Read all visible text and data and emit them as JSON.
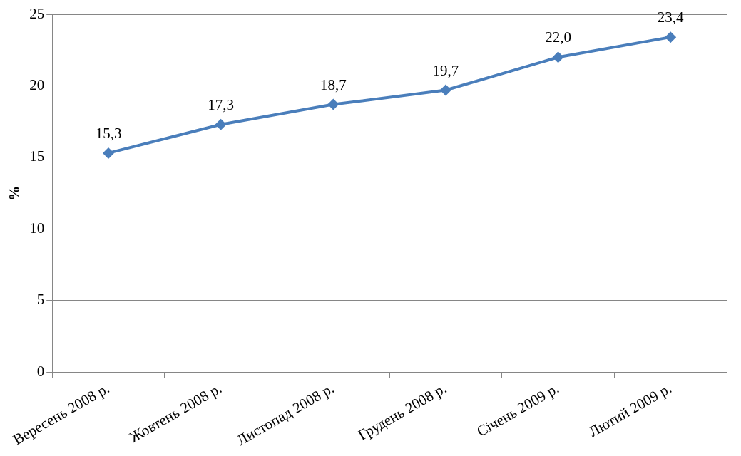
{
  "chart_data": {
    "type": "line",
    "ylabel": "%",
    "categories": [
      "Вересень 2008 р.",
      "Жовтень 2008 р.",
      "Листопад 2008 р.",
      "Грудень 2008 р.",
      "Січень 2009 р.",
      "Лютий 2009 р."
    ],
    "series": [
      {
        "color": "#4a7ebb",
        "values": [
          15.3,
          17.3,
          18.7,
          19.7,
          22.0,
          23.4
        ],
        "value_labels": [
          "15,3",
          "17,3",
          "18,7",
          "19,7",
          "22,0",
          "23,4"
        ]
      }
    ],
    "ylim": [
      0,
      25
    ],
    "yticks": [
      0,
      5,
      10,
      15,
      20,
      25
    ],
    "grid": "y",
    "legend": false,
    "marker": "diamond",
    "line_style": "solid"
  }
}
